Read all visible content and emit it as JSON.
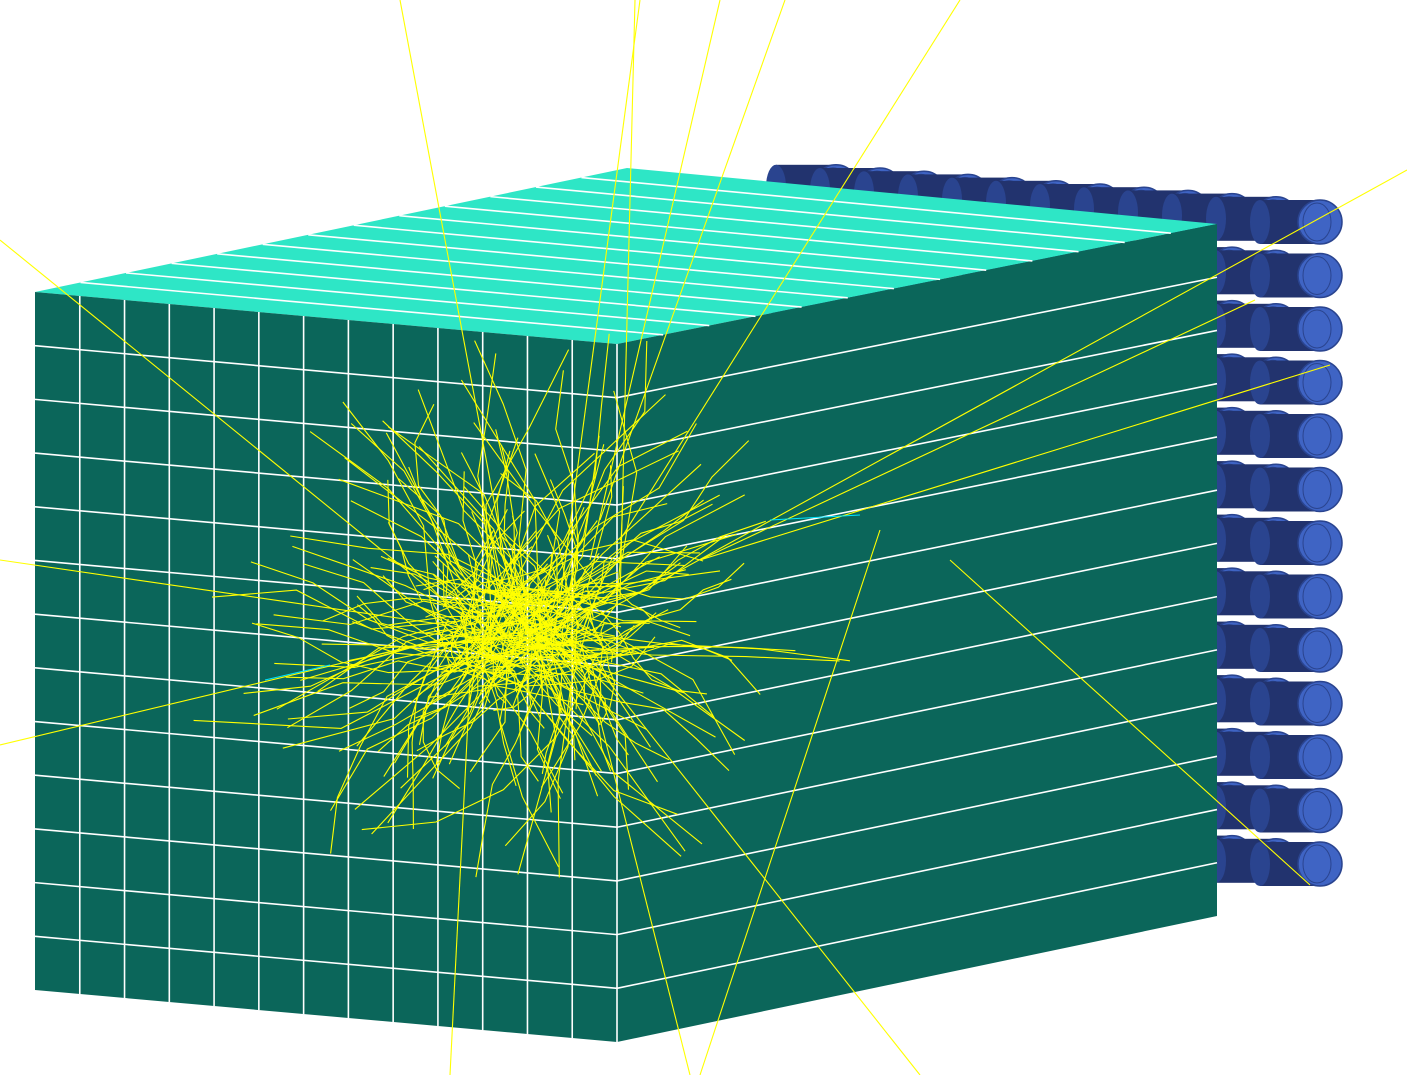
{
  "scene": {
    "background_color": "#ffffff",
    "colors": {
      "calorimeter_front": "#0b665a",
      "calorimeter_top": "#2ee6c6",
      "grid_lines": "#ffffff",
      "pmt_body": "#3f64c4",
      "pmt_shadow": "#22336e",
      "pmt_rim": "#2a448f",
      "particle_tracks": "#ffff00",
      "secondary_tracks": "#00e5ff"
    },
    "components": {
      "calorimeter_block": "segmented-calorimeter",
      "photomultiplier_array": "pmt-cylinder-array",
      "particle_shower": "particle-shower-tracks"
    },
    "segmentation": {
      "front_columns": 13,
      "rows": 13,
      "side_columns": 14,
      "pmt_columns": 12,
      "pmt_rows": 13
    },
    "shower_track_count": 320
  }
}
